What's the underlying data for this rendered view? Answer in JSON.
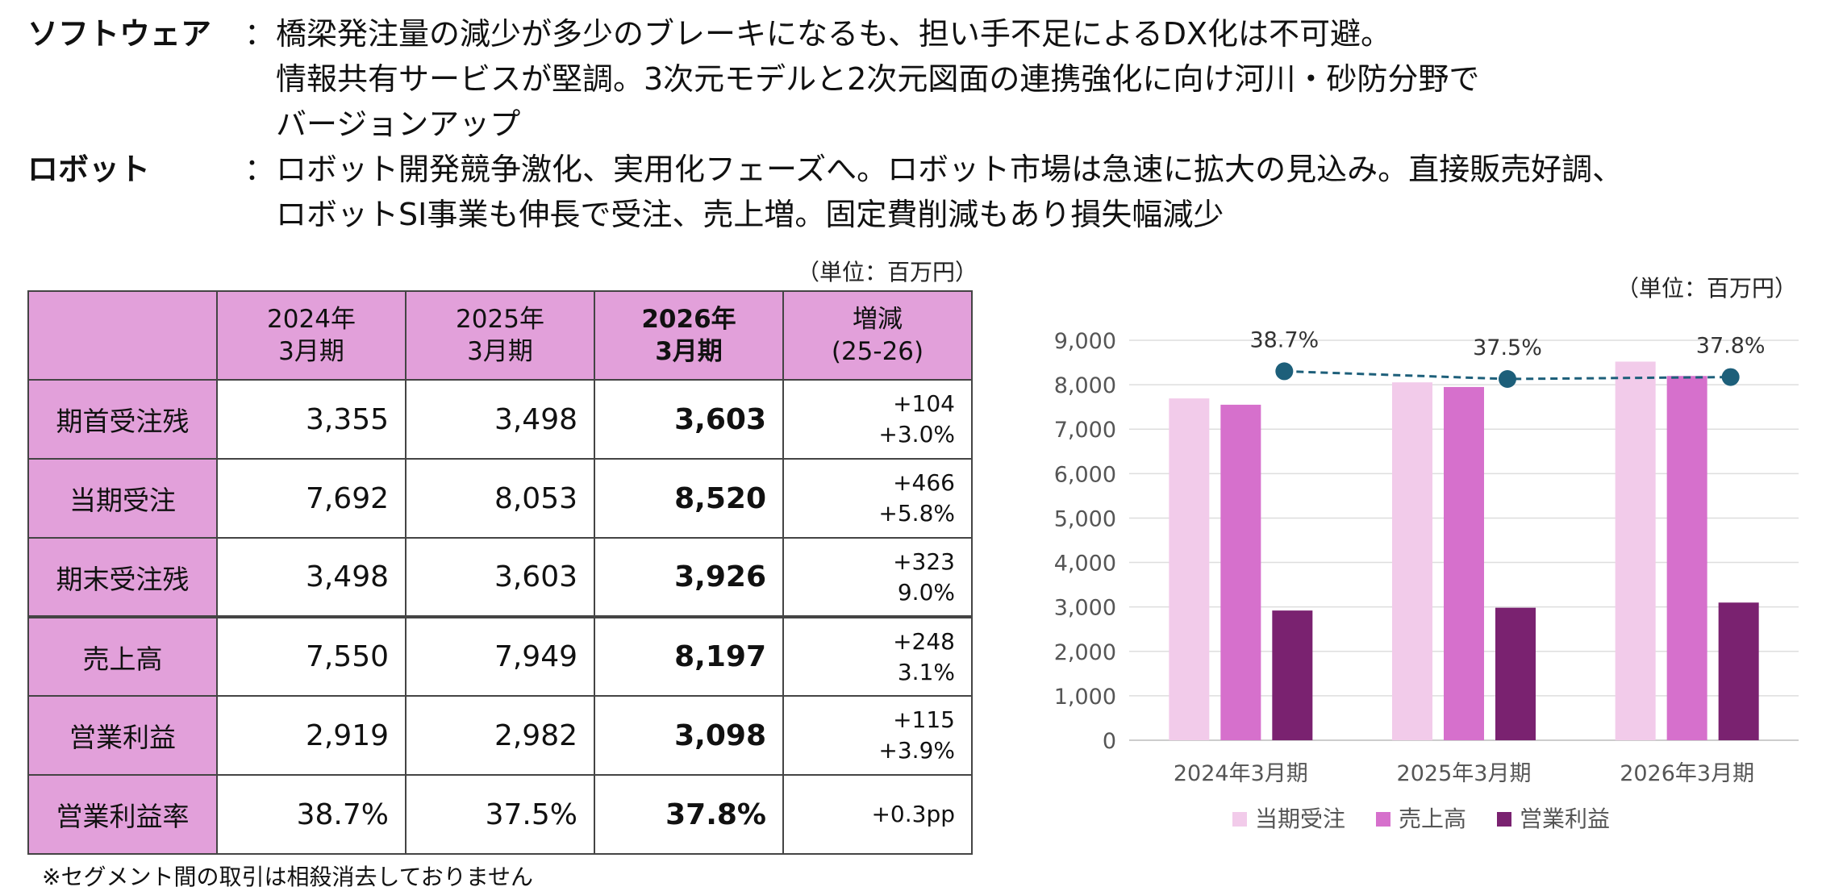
{
  "notes": [
    {
      "label": "ソフトウェア",
      "colon": "：",
      "lines": [
        "橋梁発注量の減少が多少のブレーキになるも、担い手不足によるDX化は不可避。",
        "情報共有サービスが堅調。3次元モデルと2次元図面の連携強化に向け河川・砂防分野で",
        "バージョンアップ"
      ]
    },
    {
      "label": "ロボット",
      "colon": "：",
      "lines": [
        "ロボット開発競争激化、実用化フェーズへ。ロボット市場は急速に拡大の見込み。直接販売好調、",
        "ロボットSI事業も伸長で受注、売上増。固定費削減もあり損失幅減少"
      ]
    }
  ],
  "table_unit": "（単位：百万円）",
  "chart_unit": "（単位：百万円）",
  "table": {
    "headers": [
      {
        "l1": "2024年",
        "l2": "3月期"
      },
      {
        "l1": "2025年",
        "l2": "3月期"
      },
      {
        "l1": "2026年",
        "l2": "3月期"
      },
      {
        "l1": "増減",
        "l2": "(25-26)"
      }
    ],
    "rows": [
      {
        "label": "期首受注残",
        "v2024": "3,355",
        "v2025": "3,498",
        "v2026": "3,603",
        "chg1": "+104",
        "chg2": "+3.0%"
      },
      {
        "label": "当期受注",
        "v2024": "7,692",
        "v2025": "8,053",
        "v2026": "8,520",
        "chg1": "+466",
        "chg2": "+5.8%"
      },
      {
        "label": "期末受注残",
        "v2024": "3,498",
        "v2025": "3,603",
        "v2026": "3,926",
        "chg1": "+323",
        "chg2": "9.0%"
      },
      {
        "label": "売上高",
        "v2024": "7,550",
        "v2025": "7,949",
        "v2026": "8,197",
        "chg1": "+248",
        "chg2": "3.1%"
      },
      {
        "label": "営業利益",
        "v2024": "2,919",
        "v2025": "2,982",
        "v2026": "3,098",
        "chg1": "+115",
        "chg2": "+3.9%"
      },
      {
        "label": "営業利益率",
        "v2024": "38.7%",
        "v2025": "37.5%",
        "v2026": "37.8%",
        "chg1": "+0.3pp",
        "chg2": ""
      }
    ]
  },
  "footnote": "※セグメント間の取引は相殺消去しておりません",
  "chart_data": {
    "type": "bar",
    "categories": [
      "2024年3月期",
      "2025年3月期",
      "2026年3月期"
    ],
    "series": [
      {
        "name": "当期受注",
        "values": [
          7692,
          8053,
          8520
        ],
        "color": "#f2cbea"
      },
      {
        "name": "売上高",
        "values": [
          7550,
          7949,
          8197
        ],
        "color": "#d670cc"
      },
      {
        "name": "営業利益",
        "values": [
          2919,
          2982,
          3098
        ],
        "color": "#7a2270"
      }
    ],
    "line": {
      "labels": [
        "38.7%",
        "37.5%",
        "37.8%"
      ],
      "values": [
        38.7,
        37.5,
        37.8
      ],
      "color": "#1d5f7a",
      "style": "dashed"
    },
    "ylim": [
      0,
      9000
    ],
    "yticks": [
      "0",
      "1,000",
      "2,000",
      "3,000",
      "4,000",
      "5,000",
      "6,000",
      "7,000",
      "8,000",
      "9,000"
    ],
    "grid": true,
    "legend": "bottom",
    "title": "",
    "xlabel": "",
    "ylabel": ""
  }
}
